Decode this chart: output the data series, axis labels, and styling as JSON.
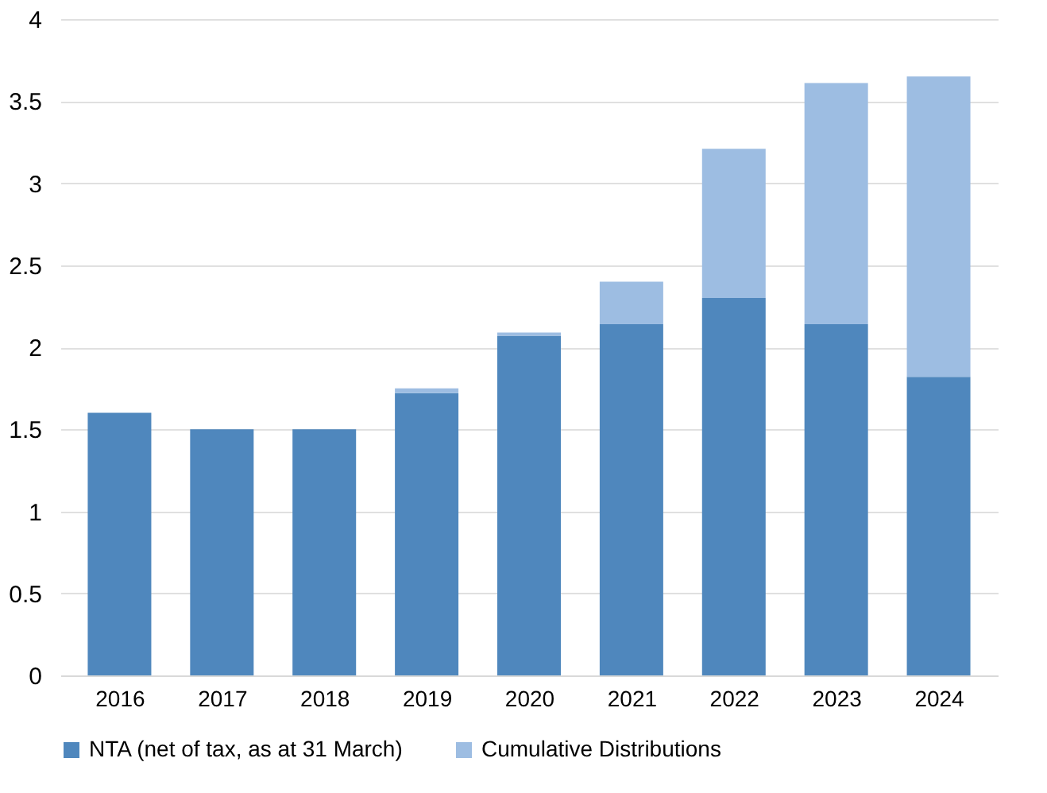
{
  "chart_data": {
    "type": "bar",
    "stacked": true,
    "categories": [
      "2016",
      "2017",
      "2018",
      "2019",
      "2020",
      "2021",
      "2022",
      "2023",
      "2024"
    ],
    "series": [
      {
        "name": "NTA (net of tax, as at 31 March)",
        "color": "#4f87bd",
        "values": [
          1.6,
          1.5,
          1.5,
          1.72,
          2.07,
          2.14,
          2.3,
          2.14,
          1.82
        ]
      },
      {
        "name": "Cumulative Distributions",
        "color": "#9dbde2",
        "values": [
          0,
          0,
          0,
          0.03,
          0.02,
          0.26,
          0.91,
          1.47,
          1.83
        ]
      }
    ],
    "ylim": [
      0,
      4
    ],
    "yticks": [
      0,
      0.5,
      1,
      1.5,
      2,
      2.5,
      3,
      3.5,
      4
    ],
    "grid": "y",
    "legend": "bottom"
  }
}
